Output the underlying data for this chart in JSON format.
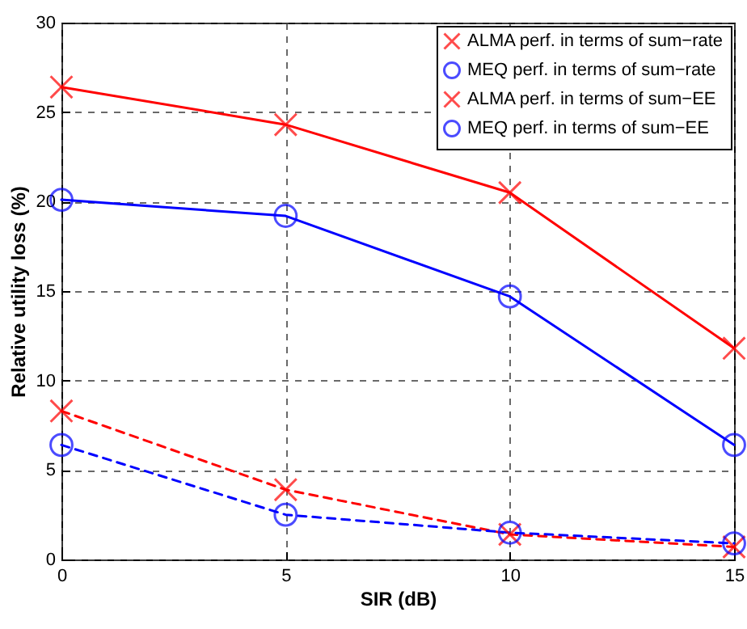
{
  "chart_data": {
    "type": "line",
    "xlabel": "SIR (dB)",
    "ylabel": "Relative utility loss (%)",
    "x": [
      0,
      5,
      10,
      15
    ],
    "xlim": [
      0,
      15
    ],
    "ylim": [
      0,
      30
    ],
    "xticks": [
      0,
      5,
      10,
      15
    ],
    "yticks": [
      0,
      5,
      10,
      15,
      20,
      25,
      30
    ],
    "grid": true,
    "legend": "top right",
    "series": [
      {
        "name": "ALMA perf. in terms of sum−rate",
        "color": "#ff0000",
        "marker": "cross",
        "line_style": "solid",
        "values": [
          26.4,
          24.3,
          20.5,
          11.8
        ]
      },
      {
        "name": "MEQ perf. in terms of sum−rate",
        "color": "#0000ff",
        "marker": "circle",
        "line_style": "solid",
        "values": [
          20.1,
          19.2,
          14.7,
          6.4
        ]
      },
      {
        "name": "ALMA perf. in terms of sum−EE",
        "color": "#ff0000",
        "marker": "cross",
        "line_style": "dashed",
        "values": [
          8.3,
          3.9,
          1.4,
          0.7
        ]
      },
      {
        "name": "MEQ perf. in terms of sum−EE",
        "color": "#0000ff",
        "marker": "circle",
        "line_style": "dashed",
        "values": [
          6.4,
          2.5,
          1.5,
          0.9
        ]
      }
    ]
  }
}
